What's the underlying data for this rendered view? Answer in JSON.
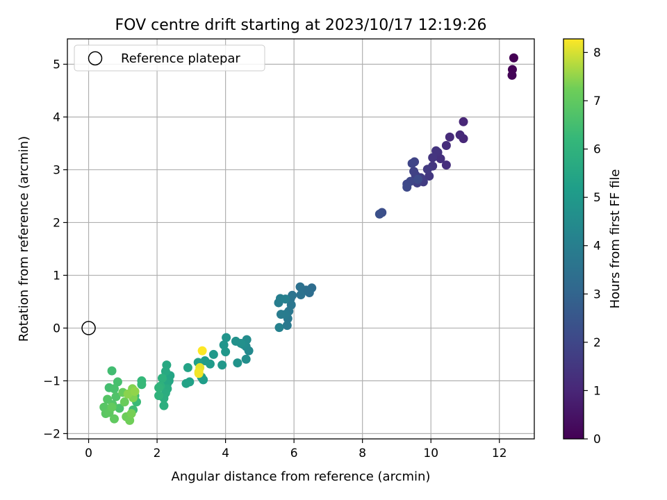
{
  "chart_data": {
    "type": "scatter",
    "title": "FOV centre drift starting at 2023/10/17 12:19:26",
    "xlabel": "Angular distance from reference (arcmin)",
    "ylabel": "Rotation from reference (arcmin)",
    "xlim": [
      -0.62,
      13.02
    ],
    "ylim": [
      -2.1,
      5.48
    ],
    "xticks": [
      0,
      2,
      4,
      6,
      8,
      10,
      12
    ],
    "yticks": [
      -2,
      -1,
      0,
      1,
      2,
      3,
      4,
      5
    ],
    "grid": true,
    "legend": {
      "position": "top-left",
      "entries": [
        "Reference platepar"
      ]
    },
    "reference_point": {
      "x": 0,
      "y": 0
    },
    "colorbar": {
      "label": "Hours from first FF file",
      "colormap": "viridis",
      "range": [
        0,
        8.28
      ],
      "ticks": [
        0,
        1,
        2,
        3,
        4,
        5,
        6,
        7,
        8
      ]
    },
    "points": [
      {
        "x": 12.42,
        "y": 5.12,
        "c": 0.0
      },
      {
        "x": 12.38,
        "y": 4.9,
        "c": 0.05
      },
      {
        "x": 12.37,
        "y": 4.79,
        "c": 0.1
      },
      {
        "x": 10.95,
        "y": 3.91,
        "c": 1.0
      },
      {
        "x": 10.95,
        "y": 3.59,
        "c": 1.05
      },
      {
        "x": 10.85,
        "y": 3.66,
        "c": 1.1
      },
      {
        "x": 10.55,
        "y": 3.62,
        "c": 1.15
      },
      {
        "x": 10.45,
        "y": 3.46,
        "c": 1.2
      },
      {
        "x": 10.45,
        "y": 3.09,
        "c": 1.25
      },
      {
        "x": 10.28,
        "y": 3.21,
        "c": 1.3
      },
      {
        "x": 10.2,
        "y": 3.33,
        "c": 1.35
      },
      {
        "x": 10.15,
        "y": 3.36,
        "c": 1.4
      },
      {
        "x": 10.05,
        "y": 3.23,
        "c": 1.45
      },
      {
        "x": 10.05,
        "y": 3.07,
        "c": 1.5
      },
      {
        "x": 9.95,
        "y": 2.88,
        "c": 1.55
      },
      {
        "x": 9.9,
        "y": 3.01,
        "c": 1.6
      },
      {
        "x": 9.78,
        "y": 2.77,
        "c": 1.65
      },
      {
        "x": 9.7,
        "y": 2.85,
        "c": 1.7
      },
      {
        "x": 9.6,
        "y": 2.75,
        "c": 1.75
      },
      {
        "x": 9.55,
        "y": 2.9,
        "c": 1.8
      },
      {
        "x": 9.5,
        "y": 2.97,
        "c": 1.85
      },
      {
        "x": 9.52,
        "y": 3.15,
        "c": 1.9
      },
      {
        "x": 9.45,
        "y": 3.12,
        "c": 1.95
      },
      {
        "x": 9.4,
        "y": 2.78,
        "c": 2.0
      },
      {
        "x": 9.3,
        "y": 2.73,
        "c": 2.05
      },
      {
        "x": 9.3,
        "y": 2.67,
        "c": 2.1
      },
      {
        "x": 9.62,
        "y": 2.82,
        "c": 2.15
      },
      {
        "x": 8.57,
        "y": 2.19,
        "c": 2.25
      },
      {
        "x": 8.5,
        "y": 2.16,
        "c": 2.3
      },
      {
        "x": 6.52,
        "y": 0.76,
        "c": 3.3
      },
      {
        "x": 6.45,
        "y": 0.67,
        "c": 3.35
      },
      {
        "x": 6.35,
        "y": 0.72,
        "c": 3.4
      },
      {
        "x": 6.18,
        "y": 0.78,
        "c": 3.45
      },
      {
        "x": 6.2,
        "y": 0.63,
        "c": 3.5
      },
      {
        "x": 5.95,
        "y": 0.62,
        "c": 3.55
      },
      {
        "x": 5.9,
        "y": 0.56,
        "c": 3.6
      },
      {
        "x": 5.92,
        "y": 0.44,
        "c": 3.65
      },
      {
        "x": 5.85,
        "y": 0.32,
        "c": 3.7
      },
      {
        "x": 5.82,
        "y": 0.18,
        "c": 3.75
      },
      {
        "x": 5.8,
        "y": 0.05,
        "c": 3.8
      },
      {
        "x": 5.75,
        "y": 0.26,
        "c": 3.85
      },
      {
        "x": 5.62,
        "y": 0.26,
        "c": 3.9
      },
      {
        "x": 5.55,
        "y": 0.48,
        "c": 3.95
      },
      {
        "x": 5.6,
        "y": 0.56,
        "c": 4.0
      },
      {
        "x": 5.75,
        "y": 0.55,
        "c": 4.05
      },
      {
        "x": 5.57,
        "y": 0.01,
        "c": 4.1
      },
      {
        "x": 4.68,
        "y": -0.43,
        "c": 4.4
      },
      {
        "x": 4.6,
        "y": -0.35,
        "c": 4.45
      },
      {
        "x": 4.62,
        "y": -0.22,
        "c": 4.5
      },
      {
        "x": 4.52,
        "y": -0.31,
        "c": 4.55
      },
      {
        "x": 4.6,
        "y": -0.59,
        "c": 4.6
      },
      {
        "x": 4.45,
        "y": -0.29,
        "c": 4.65
      },
      {
        "x": 4.3,
        "y": -0.25,
        "c": 4.7
      },
      {
        "x": 4.35,
        "y": -0.66,
        "c": 4.75
      },
      {
        "x": 4.02,
        "y": -0.18,
        "c": 4.8
      },
      {
        "x": 3.95,
        "y": -0.32,
        "c": 4.85
      },
      {
        "x": 4.0,
        "y": -0.45,
        "c": 4.9
      },
      {
        "x": 3.9,
        "y": -0.7,
        "c": 4.95
      },
      {
        "x": 3.65,
        "y": -0.5,
        "c": 5.0
      },
      {
        "x": 3.55,
        "y": -0.68,
        "c": 5.05
      },
      {
        "x": 3.4,
        "y": -0.62,
        "c": 5.1
      },
      {
        "x": 3.35,
        "y": -0.98,
        "c": 5.15
      },
      {
        "x": 3.3,
        "y": -0.93,
        "c": 5.2
      },
      {
        "x": 3.2,
        "y": -0.65,
        "c": 5.25
      },
      {
        "x": 2.95,
        "y": -1.02,
        "c": 5.3
      },
      {
        "x": 2.85,
        "y": -1.05,
        "c": 5.35
      },
      {
        "x": 2.9,
        "y": -0.75,
        "c": 5.4
      },
      {
        "x": 2.38,
        "y": -0.9,
        "c": 5.45
      },
      {
        "x": 2.35,
        "y": -1.0,
        "c": 5.5
      },
      {
        "x": 2.3,
        "y": -1.05,
        "c": 5.55
      },
      {
        "x": 2.28,
        "y": -0.7,
        "c": 5.6
      },
      {
        "x": 2.25,
        "y": -0.82,
        "c": 5.65
      },
      {
        "x": 2.3,
        "y": -1.15,
        "c": 5.7
      },
      {
        "x": 2.25,
        "y": -1.23,
        "c": 5.75
      },
      {
        "x": 2.2,
        "y": -1.33,
        "c": 5.8
      },
      {
        "x": 2.2,
        "y": -1.47,
        "c": 5.85
      },
      {
        "x": 2.15,
        "y": -0.95,
        "c": 5.9
      },
      {
        "x": 2.1,
        "y": -1.1,
        "c": 5.95
      },
      {
        "x": 2.05,
        "y": -1.28,
        "c": 6.0
      },
      {
        "x": 2.05,
        "y": -1.13,
        "c": 6.05
      },
      {
        "x": 1.55,
        "y": -1.0,
        "c": 6.2
      },
      {
        "x": 1.55,
        "y": -1.07,
        "c": 6.25
      },
      {
        "x": 1.4,
        "y": -1.4,
        "c": 6.3
      },
      {
        "x": 1.35,
        "y": -1.28,
        "c": 6.35
      },
      {
        "x": 1.3,
        "y": -1.55,
        "c": 6.4
      },
      {
        "x": 0.68,
        "y": -0.81,
        "c": 6.45
      },
      {
        "x": 0.6,
        "y": -1.13,
        "c": 6.5
      },
      {
        "x": 0.85,
        "y": -1.02,
        "c": 6.55
      },
      {
        "x": 0.75,
        "y": -1.15,
        "c": 6.6
      },
      {
        "x": 0.9,
        "y": -1.52,
        "c": 6.65
      },
      {
        "x": 0.8,
        "y": -1.3,
        "c": 6.7
      },
      {
        "x": 0.7,
        "y": -1.45,
        "c": 6.75
      },
      {
        "x": 0.55,
        "y": -1.35,
        "c": 6.8
      },
      {
        "x": 0.45,
        "y": -1.5,
        "c": 6.85
      },
      {
        "x": 0.5,
        "y": -1.62,
        "c": 6.9
      },
      {
        "x": 0.6,
        "y": -1.6,
        "c": 6.95
      },
      {
        "x": 0.75,
        "y": -1.72,
        "c": 7.0
      },
      {
        "x": 0.68,
        "y": -1.5,
        "c": 7.05
      },
      {
        "x": 1.0,
        "y": -1.22,
        "c": 7.1
      },
      {
        "x": 1.05,
        "y": -1.4,
        "c": 7.15
      },
      {
        "x": 1.1,
        "y": -1.68,
        "c": 7.2
      },
      {
        "x": 1.2,
        "y": -1.75,
        "c": 7.25
      },
      {
        "x": 1.25,
        "y": -1.62,
        "c": 7.3
      },
      {
        "x": 1.3,
        "y": -1.32,
        "c": 7.35
      },
      {
        "x": 1.28,
        "y": -1.15,
        "c": 7.4
      },
      {
        "x": 1.15,
        "y": -1.25,
        "c": 7.45
      },
      {
        "x": 1.35,
        "y": -1.2,
        "c": 7.5
      },
      {
        "x": 3.25,
        "y": -0.75,
        "c": 8.1
      },
      {
        "x": 3.22,
        "y": -0.83,
        "c": 8.15
      },
      {
        "x": 3.22,
        "y": -0.86,
        "c": 8.2
      },
      {
        "x": 3.32,
        "y": -0.43,
        "c": 8.28
      }
    ]
  }
}
